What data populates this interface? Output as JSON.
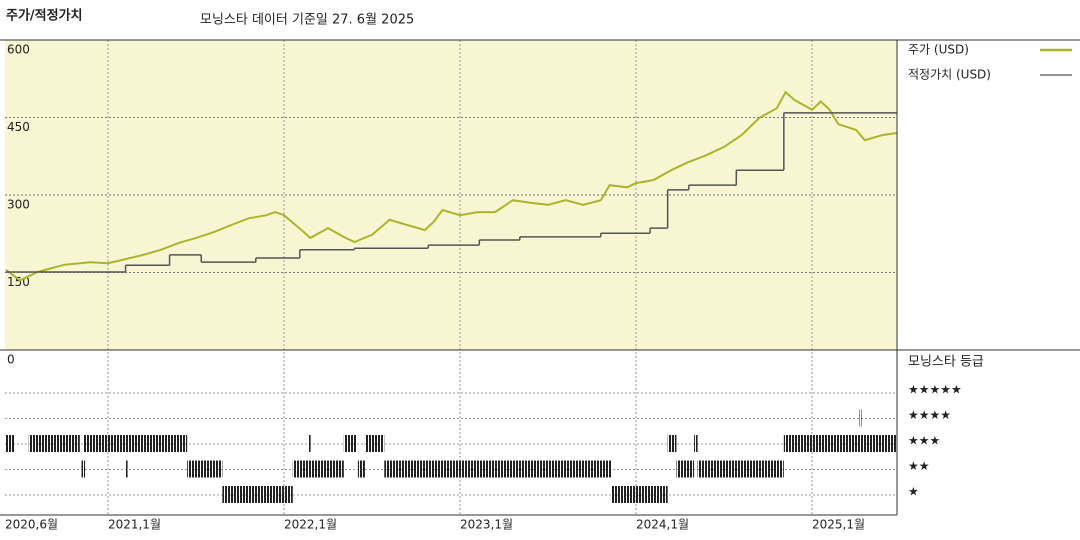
{
  "chart_data": {
    "type": "line",
    "title": "주가/적정가치",
    "subtitle": "모닝스타 데이터 기준일 27. 6월 2025",
    "xlim": [
      2020.415,
      2025.483
    ],
    "xticks": [
      {
        "value": 2020.415,
        "label": "2020,6월"
      },
      {
        "value": 2021.0,
        "label": "2021,1월"
      },
      {
        "value": 2022.0,
        "label": "2022,1월"
      },
      {
        "value": 2023.0,
        "label": "2023,1월"
      },
      {
        "value": 2024.0,
        "label": "2024,1월"
      },
      {
        "value": 2025.0,
        "label": "2025,1월"
      }
    ],
    "ylim": [
      0,
      600
    ],
    "yticks": [
      0,
      150,
      300,
      450,
      600
    ],
    "grid": true,
    "series": [
      {
        "name": "주가 (USD)",
        "color": "#aab52a",
        "step": false,
        "x": [
          2020.42,
          2020.5,
          2020.6,
          2020.75,
          2020.9,
          2021.0,
          2021.1,
          2021.2,
          2021.3,
          2021.4,
          2021.5,
          2021.6,
          2021.7,
          2021.8,
          2021.9,
          2021.95,
          2022.0,
          2022.1,
          2022.15,
          2022.25,
          2022.35,
          2022.4,
          2022.5,
          2022.6,
          2022.7,
          2022.8,
          2022.85,
          2022.9,
          2023.0,
          2023.1,
          2023.2,
          2023.3,
          2023.4,
          2023.5,
          2023.6,
          2023.7,
          2023.8,
          2023.85,
          2023.95,
          2024.0,
          2024.1,
          2024.2,
          2024.3,
          2024.4,
          2024.5,
          2024.6,
          2024.7,
          2024.8,
          2024.85,
          2024.9,
          2025.0,
          2025.05,
          2025.1,
          2025.15,
          2025.25,
          2025.3,
          2025.4,
          2025.48
        ],
        "values": [
          155,
          135,
          151,
          165,
          170,
          168,
          176,
          184,
          194,
          207,
          217,
          228,
          242,
          255,
          261,
          267,
          261,
          232,
          217,
          236,
          217,
          209,
          223,
          252,
          242,
          232,
          248,
          271,
          261,
          267,
          267,
          290,
          285,
          281,
          290,
          281,
          290,
          319,
          315,
          323,
          329,
          348,
          364,
          377,
          393,
          416,
          449,
          468,
          499,
          484,
          465,
          481,
          465,
          437,
          426,
          406,
          416,
          420
        ]
      },
      {
        "name": "적정가치 (USD)",
        "color": "#555555",
        "step": true,
        "x": [
          2020.42,
          2021.1,
          2021.35,
          2021.53,
          2021.84,
          2022.09,
          2022.4,
          2022.82,
          2023.11,
          2023.34,
          2023.8,
          2024.08,
          2024.18,
          2024.3,
          2024.57,
          2024.84,
          2025.48
        ],
        "values": [
          151,
          164,
          184,
          170,
          178,
          194,
          197,
          203,
          213,
          219,
          226,
          236,
          310,
          319,
          348,
          459,
          459
        ]
      }
    ],
    "ratings": {
      "title": "모닝스타 등급",
      "color": "#222222",
      "levels": [
        5,
        4,
        3,
        2,
        1
      ],
      "labels": [
        "★★★★★",
        "★★★★",
        "★★★",
        "★★",
        "★"
      ],
      "start": [
        2020.42,
        2020.55,
        2020.86,
        2020.85,
        2021.1,
        2021.45,
        2021.65,
        2022.05,
        2022.14,
        2022.34,
        2022.42,
        2022.46,
        2022.57,
        2023.86,
        2024.18,
        2024.23,
        2024.33,
        2024.35,
        2024.84,
        2025.27
      ],
      "end": [
        2020.47,
        2020.84,
        2021.45,
        2020.87,
        2021.11,
        2021.65,
        2022.05,
        2022.34,
        2022.15,
        2022.41,
        2022.46,
        2022.57,
        2023.86,
        2024.18,
        2024.23,
        2024.33,
        2024.35,
        2024.84,
        2025.48,
        2025.28
      ],
      "stars": [
        3,
        3,
        3,
        2,
        2,
        2,
        1,
        2,
        3,
        3,
        2,
        3,
        2,
        1,
        3,
        2,
        3,
        2,
        3,
        4
      ]
    }
  }
}
